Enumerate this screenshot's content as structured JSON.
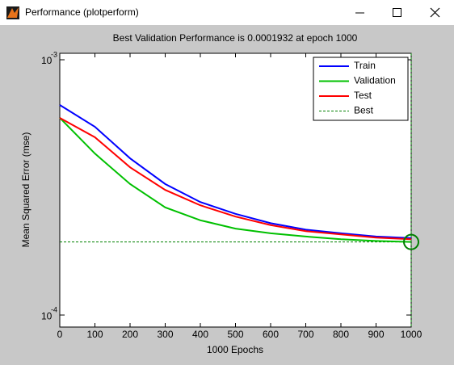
{
  "window": {
    "title": "Performance (plotperform)"
  },
  "chart_data": {
    "type": "line",
    "title": "Best Validation Performance is 0.0001932 at epoch 1000",
    "xlabel": "1000 Epochs",
    "ylabel": "Mean Squared Error  (mse)",
    "x": [
      0,
      100,
      200,
      300,
      400,
      500,
      600,
      700,
      800,
      900,
      1000
    ],
    "series": [
      {
        "name": "Train",
        "color": "#0000ff",
        "values": [
          0.000665,
          0.000546,
          0.000411,
          0.000326,
          0.000277,
          0.000249,
          0.000229,
          0.000216,
          0.000209,
          0.000203,
          0.0002
        ]
      },
      {
        "name": "Validation",
        "color": "#00c000",
        "values": [
          0.000592,
          0.000429,
          0.000326,
          0.000264,
          0.000235,
          0.000218,
          0.000209,
          0.000203,
          0.000198,
          0.000195,
          0.0001932
        ]
      },
      {
        "name": "Test",
        "color": "#ff0000",
        "values": [
          0.000592,
          0.000497,
          0.000379,
          0.000309,
          0.000269,
          0.000243,
          0.000225,
          0.000213,
          0.000207,
          0.000201,
          0.000198
        ]
      }
    ],
    "best": {
      "name": "Best",
      "color": "#008000",
      "x": 1000,
      "value": 0.0001932
    },
    "xlim": [
      0,
      1000
    ],
    "xticks": [
      0,
      100,
      200,
      300,
      400,
      500,
      600,
      700,
      800,
      900,
      1000
    ],
    "ylim": [
      8.97e-05,
      0.00106
    ],
    "yticks": [
      {
        "value": 0.0001,
        "label": "10",
        "exponent": "-4"
      },
      {
        "value": 0.001,
        "label": "10",
        "exponent": "-3"
      }
    ],
    "log_y": true,
    "legend": "top-right"
  }
}
